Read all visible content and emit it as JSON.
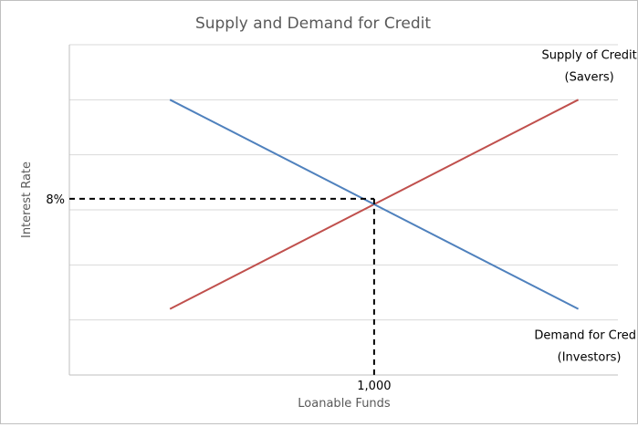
{
  "chart_data": {
    "type": "line",
    "title": "Supply and Demand for Credit",
    "xlabel": "Loanable Funds",
    "ylabel": "Interest Rate",
    "x_ticks": [
      {
        "value": 1000,
        "label": "1,000"
      }
    ],
    "y_ticks": [
      {
        "value": 8,
        "label": "8%"
      }
    ],
    "xlim": [
      0,
      1800
    ],
    "ylim": [
      0,
      15
    ],
    "grid": "horizontal",
    "series": [
      {
        "name": "Supply of Credit (Savers)",
        "label_lines": [
          "Supply of Credit",
          "(Savers)"
        ],
        "color": "#c0504d",
        "points": [
          [
            330,
            3
          ],
          [
            1670,
            12.5
          ]
        ]
      },
      {
        "name": "Demand for Credit (Investors)",
        "label_lines": [
          "Demand for Credit",
          "(Investors)"
        ],
        "color": "#4f81bd",
        "points": [
          [
            330,
            12.5
          ],
          [
            1670,
            3
          ]
        ]
      }
    ],
    "equilibrium": {
      "x": 1000,
      "y": 8
    }
  }
}
